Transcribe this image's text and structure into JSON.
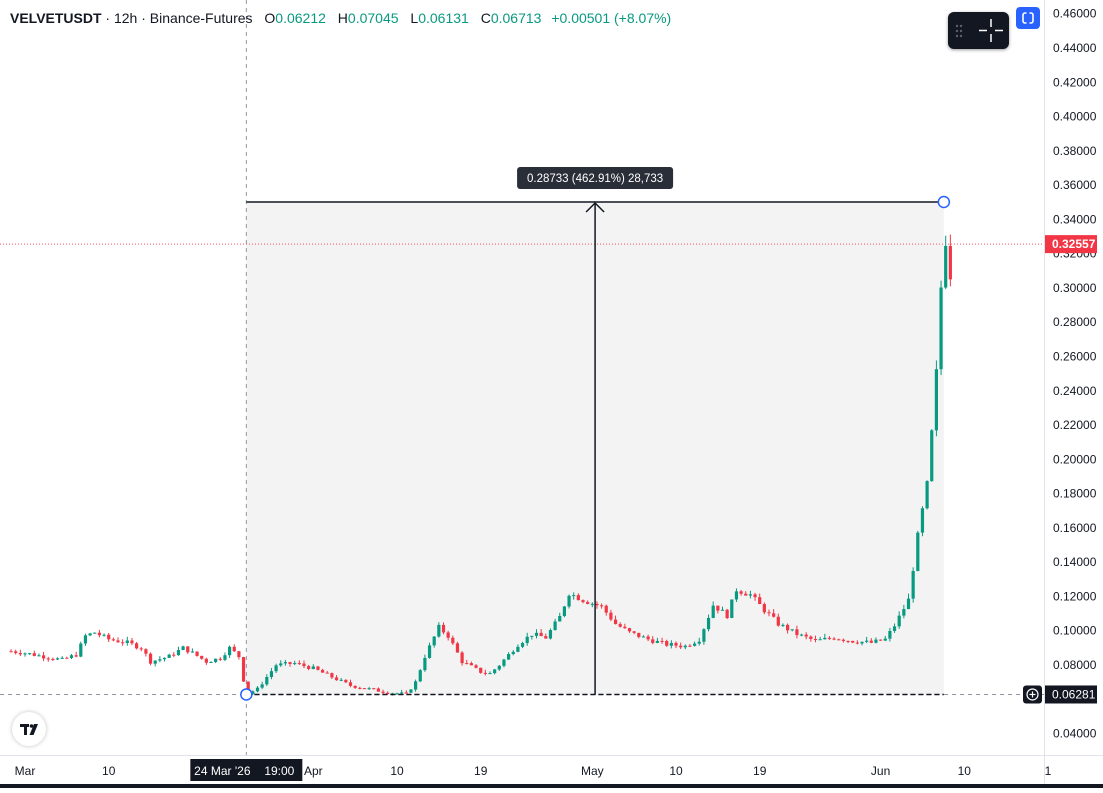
{
  "legend": {
    "symbol": "VELVETUSDT",
    "interval": "12h",
    "exchange": "Binance-Futures",
    "o_label": "O",
    "o_value": "0.06212",
    "h_label": "H",
    "h_value": "0.07045",
    "l_label": "L",
    "l_value": "0.06131",
    "c_label": "C",
    "c_value": "0.06713",
    "change": "+0.00501 (+8.07%)"
  },
  "colors": {
    "up": "#089981",
    "down": "#f23645",
    "last_price": "#f7525f",
    "crosshair_label": "#131722"
  },
  "chart_data": {
    "type": "candlestick",
    "y_ticks": [
      "0.46000",
      "0.44000",
      "0.42000",
      "0.40000",
      "0.38000",
      "0.36000",
      "0.34000",
      "0.32000",
      "0.30000",
      "0.28000",
      "0.26000",
      "0.24000",
      "0.22000",
      "0.20000",
      "0.18000",
      "0.16000",
      "0.14000",
      "0.12000",
      "0.10000",
      "0.08000",
      "0.06000",
      "0.04000"
    ],
    "ylim": [
      0.0275,
      0.468
    ],
    "x_ticks": [
      {
        "label": "Mar",
        "day": 0
      },
      {
        "label": "10",
        "day": 9
      },
      {
        "label": "Apr",
        "day": 31
      },
      {
        "label": "10",
        "day": 40
      },
      {
        "label": "19",
        "day": 49
      },
      {
        "label": "May",
        "day": 61
      },
      {
        "label": "10",
        "day": 70
      },
      {
        "label": "19",
        "day": 79
      },
      {
        "label": "Jun",
        "day": 92
      },
      {
        "label": "10",
        "day": 101
      },
      {
        "label": "1",
        "day": 110
      }
    ],
    "last_price": "0.32557",
    "crosshair_price": "0.06281",
    "crosshair_time": "24 Mar '26",
    "crosshair_clock": "19:00",
    "measure": {
      "label": "0.28733 (462.91%) 28,733",
      "start_day": 23.8,
      "end_day": 98.8,
      "low": 0.06281,
      "high": 0.35014
    },
    "close_path": [
      [
        -1.5,
        0.088
      ],
      [
        0,
        0.087
      ],
      [
        2,
        0.085
      ],
      [
        4,
        0.083
      ],
      [
        5.5,
        0.086
      ],
      [
        6.5,
        0.097
      ],
      [
        7.5,
        0.099
      ],
      [
        9,
        0.095
      ],
      [
        11,
        0.093
      ],
      [
        12.5,
        0.09
      ],
      [
        13.5,
        0.082
      ],
      [
        15.5,
        0.085
      ],
      [
        17,
        0.09
      ],
      [
        18,
        0.087
      ],
      [
        19.5,
        0.082
      ],
      [
        21,
        0.084
      ],
      [
        22,
        0.09
      ],
      [
        23,
        0.085
      ],
      [
        23.8,
        0.063
      ],
      [
        25,
        0.066
      ],
      [
        27,
        0.08
      ],
      [
        29,
        0.081
      ],
      [
        31,
        0.078
      ],
      [
        33,
        0.073
      ],
      [
        35,
        0.068
      ],
      [
        37,
        0.066
      ],
      [
        39,
        0.064
      ],
      [
        41,
        0.063
      ],
      [
        42,
        0.07
      ],
      [
        43,
        0.085
      ],
      [
        44.5,
        0.102
      ],
      [
        45.5,
        0.097
      ],
      [
        47,
        0.082
      ],
      [
        49,
        0.076
      ],
      [
        50,
        0.075
      ],
      [
        51,
        0.08
      ],
      [
        53,
        0.092
      ],
      [
        54.5,
        0.098
      ],
      [
        56,
        0.096
      ],
      [
        57.5,
        0.108
      ],
      [
        58.5,
        0.122
      ],
      [
        60,
        0.118
      ],
      [
        62,
        0.114
      ],
      [
        63.5,
        0.104
      ],
      [
        65,
        0.099
      ],
      [
        67,
        0.095
      ],
      [
        69,
        0.092
      ],
      [
        71,
        0.091
      ],
      [
        72.5,
        0.095
      ],
      [
        74,
        0.115
      ],
      [
        75.5,
        0.109
      ],
      [
        76.5,
        0.124
      ],
      [
        78,
        0.121
      ],
      [
        79.5,
        0.112
      ],
      [
        81,
        0.104
      ],
      [
        83,
        0.098
      ],
      [
        85,
        0.094
      ],
      [
        87,
        0.096
      ],
      [
        89,
        0.094
      ],
      [
        91,
        0.093
      ],
      [
        92.5,
        0.095
      ],
      [
        93.5,
        0.103
      ],
      [
        95,
        0.118
      ],
      [
        96,
        0.155
      ],
      [
        97,
        0.185
      ],
      [
        97.5,
        0.215
      ],
      [
        98,
        0.25
      ],
      [
        98.4,
        0.29
      ],
      [
        98.8,
        0.332
      ],
      [
        99.2,
        0.325
      ],
      [
        99.5,
        0.3
      ]
    ]
  },
  "ui": {
    "tool_widget_icon": "crosshair-icon",
    "sync_icon": "sync-icon",
    "logo": "TV",
    "add_icon": "plus-circle-icon"
  }
}
